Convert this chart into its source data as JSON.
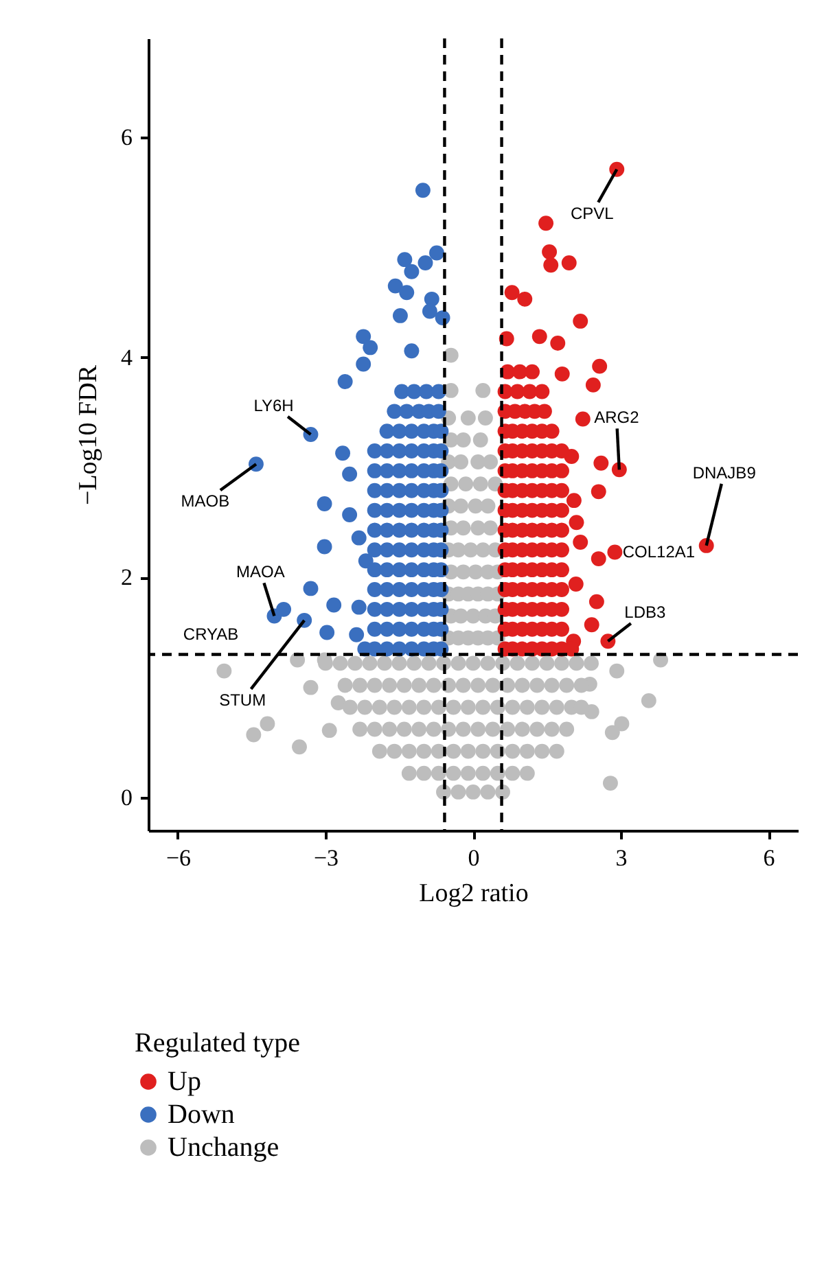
{
  "chart_data": {
    "type": "scatter",
    "xlabel": "Log2 ratio",
    "ylabel": "−Log10 FDR",
    "legend_title": "Regulated type",
    "xlim": [
      -6.6,
      6.6
    ],
    "ylim": [
      -0.3,
      6.9
    ],
    "xticks": [
      {
        "value": -6,
        "label": "−6"
      },
      {
        "value": -3,
        "label": "−3"
      },
      0,
      3,
      6
    ],
    "yticks": [
      0,
      2,
      4,
      6
    ],
    "grid": false,
    "legend": "bottom",
    "marker": "circle",
    "ref_lines": [
      {
        "axis": "x",
        "value": -0.58,
        "color": "#000000",
        "line_style": "dashed"
      },
      {
        "axis": "x",
        "value": 0.58,
        "color": "#000000",
        "line_style": "dashed"
      },
      {
        "axis": "y",
        "value": 1.3,
        "color": "#000000",
        "line_style": "dashed"
      }
    ],
    "annotations": [
      {
        "text": "CPVL",
        "x": 2.92,
        "y": 5.71
      },
      {
        "text": "ARG2",
        "x": 2.97,
        "y": 2.98
      },
      {
        "text": "DNAJB9",
        "x": 4.74,
        "y": 2.29
      },
      {
        "text": "COL12A1",
        "x": 2.88,
        "y": 2.23
      },
      {
        "text": "LDB3",
        "x": 2.74,
        "y": 1.42
      },
      {
        "text": "LY6H",
        "x": -3.3,
        "y": 3.3
      },
      {
        "text": "MAOB",
        "x": -4.41,
        "y": 3.03
      },
      {
        "text": "MAOA",
        "x": -4.04,
        "y": 1.65
      },
      {
        "text": "CRYAB",
        "x": -3.85,
        "y": 1.71
      },
      {
        "text": "STUM",
        "x": -3.43,
        "y": 1.61
      }
    ],
    "series": [
      {
        "name": "Up",
        "color": "#e0201f",
        "x": [
          2.92,
          1.48,
          1.55,
          1.95,
          1.58,
          0.79,
          1.05,
          2.18,
          0.68,
          1.35,
          1.72,
          2.57,
          2.44,
          2.23,
          1.81,
          2.6,
          2.97,
          2.55,
          2.18,
          2.55,
          2.88,
          2.09,
          2.51,
          2.41,
          2.74,
          2.04,
          4.74,
          2.05,
          2.0,
          2.1,
          0.65,
          0.8,
          1.0,
          1.2,
          1.4,
          1.6,
          1.8,
          2.0,
          0.65,
          0.8,
          1.0,
          1.2,
          1.4,
          1.6,
          1.8,
          0.65,
          0.8,
          1.0,
          1.2,
          1.4,
          1.6,
          1.8,
          0.65,
          0.8,
          1.0,
          1.2,
          1.4,
          1.6,
          1.8,
          0.65,
          0.8,
          1.0,
          1.2,
          1.4,
          1.6,
          1.8,
          0.65,
          0.8,
          1.0,
          1.2,
          1.4,
          1.6,
          1.8,
          0.65,
          0.8,
          1.0,
          1.2,
          1.4,
          1.6,
          1.8,
          0.65,
          0.8,
          1.0,
          1.2,
          1.4,
          1.6,
          1.8,
          0.65,
          0.8,
          1.0,
          1.2,
          1.4,
          1.6,
          1.8,
          0.65,
          0.8,
          1.0,
          1.2,
          1.4,
          1.6,
          1.8,
          0.65,
          0.8,
          1.0,
          1.2,
          1.4,
          1.6,
          1.8,
          0.65,
          0.8,
          1.0,
          1.2,
          1.4,
          1.6,
          0.65,
          0.85,
          1.05,
          1.25,
          1.45,
          0.65,
          0.9,
          1.15,
          1.4,
          0.7,
          0.95,
          1.2
        ],
        "values": [
          5.71,
          5.22,
          4.96,
          4.86,
          4.84,
          4.59,
          4.53,
          4.33,
          4.17,
          4.19,
          4.13,
          3.92,
          3.75,
          3.44,
          3.85,
          3.04,
          2.98,
          2.78,
          2.32,
          2.17,
          2.23,
          1.94,
          1.78,
          1.57,
          1.42,
          1.42,
          2.29,
          2.7,
          3.1,
          2.5,
          1.35,
          1.35,
          1.35,
          1.35,
          1.35,
          1.35,
          1.35,
          1.35,
          1.53,
          1.53,
          1.53,
          1.53,
          1.53,
          1.53,
          1.53,
          1.71,
          1.71,
          1.71,
          1.71,
          1.71,
          1.71,
          1.71,
          1.89,
          1.89,
          1.89,
          1.89,
          1.89,
          1.89,
          1.89,
          2.07,
          2.07,
          2.07,
          2.07,
          2.07,
          2.07,
          2.07,
          2.25,
          2.25,
          2.25,
          2.25,
          2.25,
          2.25,
          2.25,
          2.43,
          2.43,
          2.43,
          2.43,
          2.43,
          2.43,
          2.43,
          2.61,
          2.61,
          2.61,
          2.61,
          2.61,
          2.61,
          2.61,
          2.79,
          2.79,
          2.79,
          2.79,
          2.79,
          2.79,
          2.79,
          2.97,
          2.97,
          2.97,
          2.97,
          2.97,
          2.97,
          2.97,
          3.15,
          3.15,
          3.15,
          3.15,
          3.15,
          3.15,
          3.15,
          3.33,
          3.33,
          3.33,
          3.33,
          3.33,
          3.33,
          3.51,
          3.51,
          3.51,
          3.51,
          3.51,
          3.69,
          3.69,
          3.69,
          3.69,
          3.87,
          3.87,
          3.87
        ]
      },
      {
        "name": "Down",
        "color": "#3a6fbf",
        "x": [
          -1.02,
          -1.39,
          -0.74,
          -0.97,
          -1.25,
          -1.58,
          -1.35,
          -0.84,
          -0.88,
          -0.62,
          -1.48,
          -2.23,
          -2.09,
          -2.23,
          -1.25,
          -2.6,
          -3.3,
          -4.41,
          -4.04,
          -3.85,
          -3.43,
          -2.65,
          -2.51,
          -3.02,
          -2.51,
          -3.02,
          -2.32,
          -3.3,
          -2.83,
          -2.97,
          -2.32,
          -2.37,
          -2.18,
          -2.2,
          -2.0,
          -1.75,
          -1.5,
          -1.25,
          -1.0,
          -0.8,
          -0.65,
          -2.0,
          -1.75,
          -1.5,
          -1.25,
          -1.0,
          -0.8,
          -0.65,
          -2.0,
          -1.75,
          -1.5,
          -1.25,
          -1.0,
          -0.8,
          -0.65,
          -2.0,
          -1.75,
          -1.5,
          -1.25,
          -1.0,
          -0.8,
          -0.65,
          -2.0,
          -1.75,
          -1.5,
          -1.25,
          -1.0,
          -0.8,
          -0.65,
          -2.0,
          -1.75,
          -1.5,
          -1.25,
          -1.0,
          -0.8,
          -0.65,
          -2.0,
          -1.75,
          -1.5,
          -1.25,
          -1.0,
          -0.8,
          -0.65,
          -2.0,
          -1.75,
          -1.5,
          -1.25,
          -1.0,
          -0.8,
          -0.65,
          -2.0,
          -1.75,
          -1.5,
          -1.25,
          -1.0,
          -0.8,
          -0.65,
          -2.0,
          -1.75,
          -1.5,
          -1.25,
          -1.0,
          -0.8,
          -0.65,
          -2.0,
          -1.75,
          -1.5,
          -1.25,
          -1.0,
          -0.8,
          -0.65,
          -1.75,
          -1.5,
          -1.25,
          -1.0,
          -0.8,
          -0.65,
          -1.6,
          -1.35,
          -1.1,
          -0.9,
          -0.7,
          -1.45,
          -1.2,
          -0.95,
          -0.7
        ],
        "values": [
          5.52,
          4.89,
          4.95,
          4.86,
          4.78,
          4.65,
          4.59,
          4.53,
          4.42,
          4.36,
          4.38,
          4.19,
          4.09,
          3.94,
          4.06,
          3.78,
          3.3,
          3.03,
          1.65,
          1.71,
          1.61,
          3.13,
          2.94,
          2.67,
          2.57,
          2.28,
          2.36,
          1.9,
          1.75,
          1.5,
          1.73,
          1.48,
          2.15,
          1.35,
          1.35,
          1.35,
          1.35,
          1.35,
          1.35,
          1.35,
          1.35,
          1.53,
          1.53,
          1.53,
          1.53,
          1.53,
          1.53,
          1.53,
          1.71,
          1.71,
          1.71,
          1.71,
          1.71,
          1.71,
          1.71,
          1.89,
          1.89,
          1.89,
          1.89,
          1.89,
          1.89,
          1.89,
          2.07,
          2.07,
          2.07,
          2.07,
          2.07,
          2.07,
          2.07,
          2.25,
          2.25,
          2.25,
          2.25,
          2.25,
          2.25,
          2.25,
          2.43,
          2.43,
          2.43,
          2.43,
          2.43,
          2.43,
          2.43,
          2.61,
          2.61,
          2.61,
          2.61,
          2.61,
          2.61,
          2.61,
          2.79,
          2.79,
          2.79,
          2.79,
          2.79,
          2.79,
          2.79,
          2.97,
          2.97,
          2.97,
          2.97,
          2.97,
          2.97,
          2.97,
          3.15,
          3.15,
          3.15,
          3.15,
          3.15,
          3.15,
          3.15,
          3.33,
          3.33,
          3.33,
          3.33,
          3.33,
          3.33,
          3.51,
          3.51,
          3.51,
          3.51,
          3.51,
          3.69,
          3.69,
          3.69,
          3.69
        ]
      },
      {
        "name": "Unchange",
        "color": "#bdbdbd",
        "x": [
          -5.06,
          -4.46,
          -4.18,
          -3.53,
          -3.3,
          -3.57,
          -3.02,
          -2.92,
          -2.74,
          3.81,
          3.57,
          3.02,
          2.79,
          2.83,
          2.37,
          2.41,
          2.92,
          -0.45,
          -0.5,
          -0.3,
          -0.1,
          0.1,
          0.3,
          0.5,
          -0.45,
          -0.25,
          0.0,
          0.25,
          0.45,
          -0.5,
          -0.3,
          -0.1,
          0.1,
          0.3,
          0.5,
          -0.45,
          -0.2,
          0.05,
          0.3,
          0.5,
          -0.5,
          -0.3,
          -0.05,
          0.2,
          0.45,
          -0.45,
          -0.2,
          0.1,
          0.35,
          -0.5,
          -0.25,
          0.05,
          0.3,
          -0.45,
          -0.15,
          0.15,
          0.45,
          -0.5,
          -0.25,
          0.1,
          0.35,
          -0.45,
          -0.2,
          0.15,
          -0.5,
          -0.1,
          0.25,
          -0.45,
          0.2,
          -3.0,
          -2.7,
          -2.4,
          -2.1,
          -1.8,
          -1.5,
          -1.2,
          -0.9,
          -0.6,
          -0.3,
          0.0,
          0.3,
          0.6,
          0.9,
          1.2,
          1.5,
          1.8,
          2.1,
          2.4,
          -2.6,
          -2.3,
          -2.0,
          -1.7,
          -1.4,
          -1.1,
          -0.8,
          -0.5,
          -0.2,
          0.1,
          0.4,
          0.7,
          1.0,
          1.3,
          1.6,
          1.9,
          2.2,
          -2.5,
          -2.2,
          -1.9,
          -1.6,
          -1.3,
          -1.0,
          -0.7,
          -0.4,
          -0.1,
          0.2,
          0.5,
          0.8,
          1.1,
          1.4,
          1.7,
          2.0,
          2.2,
          -2.3,
          -2.0,
          -1.7,
          -1.4,
          -1.1,
          -0.8,
          -0.5,
          -0.2,
          0.1,
          0.4,
          0.7,
          1.0,
          1.3,
          1.6,
          1.9,
          -1.9,
          -1.6,
          -1.3,
          -1.0,
          -0.7,
          -0.4,
          -0.1,
          0.2,
          0.5,
          0.8,
          1.1,
          1.4,
          1.7,
          -1.3,
          -1.0,
          -0.7,
          -0.4,
          -0.1,
          0.2,
          0.5,
          0.8,
          1.1,
          -0.6,
          -0.3,
          0.0,
          0.3,
          0.6
        ],
        "values": [
          1.15,
          0.57,
          0.67,
          0.46,
          1.0,
          1.25,
          1.25,
          0.61,
          0.86,
          1.25,
          0.88,
          0.67,
          0.13,
          0.59,
          1.03,
          0.78,
          1.15,
          4.02,
          1.45,
          1.45,
          1.45,
          1.45,
          1.45,
          1.45,
          1.65,
          1.65,
          1.65,
          1.65,
          1.65,
          1.85,
          1.85,
          1.85,
          1.85,
          1.85,
          1.85,
          2.05,
          2.05,
          2.05,
          2.05,
          2.05,
          2.25,
          2.25,
          2.25,
          2.25,
          2.25,
          2.45,
          2.45,
          2.45,
          2.45,
          2.65,
          2.65,
          2.65,
          2.65,
          2.85,
          2.85,
          2.85,
          2.85,
          3.05,
          3.05,
          3.05,
          3.05,
          3.25,
          3.25,
          3.25,
          3.45,
          3.45,
          3.45,
          3.7,
          3.7,
          1.22,
          1.22,
          1.22,
          1.22,
          1.22,
          1.22,
          1.22,
          1.22,
          1.22,
          1.22,
          1.22,
          1.22,
          1.22,
          1.22,
          1.22,
          1.22,
          1.22,
          1.22,
          1.22,
          1.02,
          1.02,
          1.02,
          1.02,
          1.02,
          1.02,
          1.02,
          1.02,
          1.02,
          1.02,
          1.02,
          1.02,
          1.02,
          1.02,
          1.02,
          1.02,
          1.02,
          0.82,
          0.82,
          0.82,
          0.82,
          0.82,
          0.82,
          0.82,
          0.82,
          0.82,
          0.82,
          0.82,
          0.82,
          0.82,
          0.82,
          0.82,
          0.82,
          0.82,
          0.62,
          0.62,
          0.62,
          0.62,
          0.62,
          0.62,
          0.62,
          0.62,
          0.62,
          0.62,
          0.62,
          0.62,
          0.62,
          0.62,
          0.62,
          0.42,
          0.42,
          0.42,
          0.42,
          0.42,
          0.42,
          0.42,
          0.42,
          0.42,
          0.42,
          0.42,
          0.42,
          0.42,
          0.22,
          0.22,
          0.22,
          0.22,
          0.22,
          0.22,
          0.22,
          0.22,
          0.22,
          0.05,
          0.05,
          0.05,
          0.05,
          0.05
        ]
      }
    ]
  }
}
